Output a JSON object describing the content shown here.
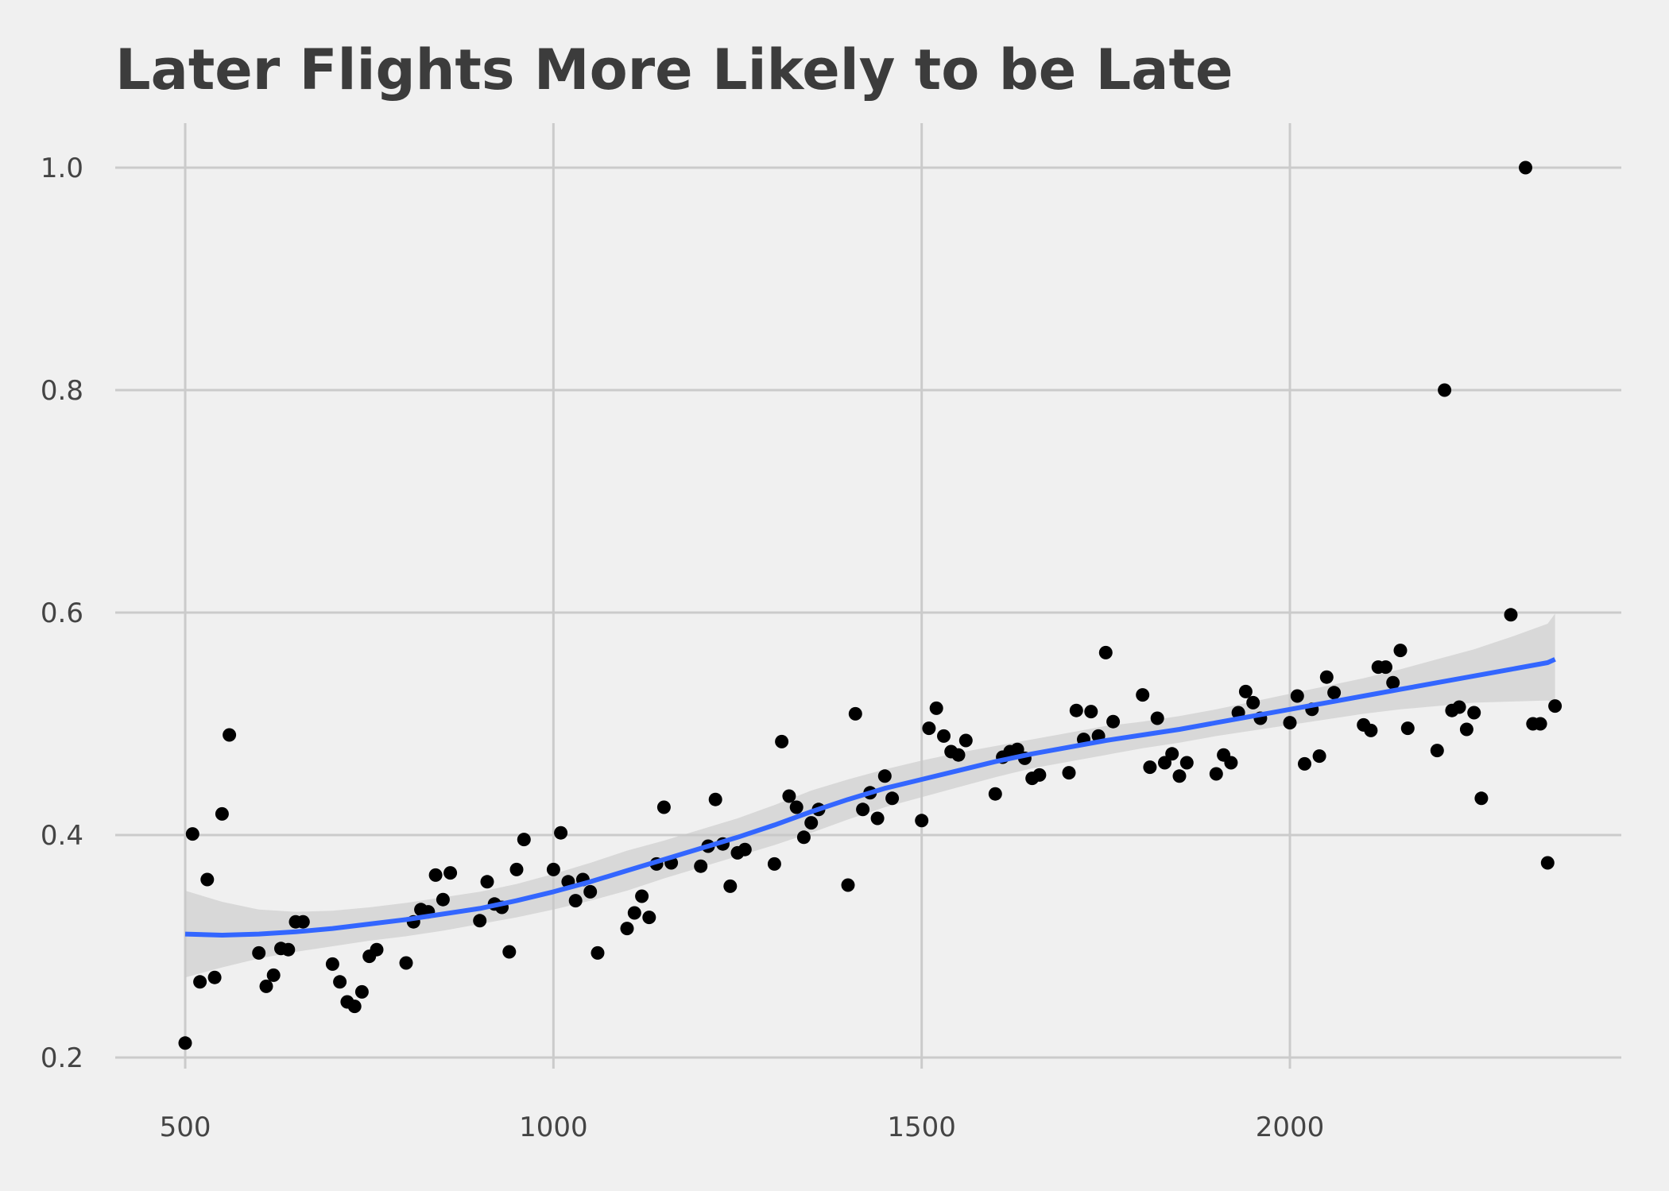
{
  "chart_data": {
    "type": "scatter",
    "title": "Later Flights More Likely to be Late",
    "xlabel": "",
    "ylabel": "",
    "xlim": [
      405,
      2450
    ],
    "ylim": [
      0.19,
      1.04
    ],
    "xticks": [
      500,
      1000,
      1500,
      2000
    ],
    "xtick_labels": [
      "500",
      "1000",
      "1500",
      "2000"
    ],
    "yticks": [
      0.2,
      0.4,
      0.6,
      0.8,
      1.0
    ],
    "ytick_labels": [
      "0.2",
      "0.4",
      "0.6",
      "0.8",
      "1.0"
    ],
    "grid": true,
    "colors": {
      "background": "#f0f0f0",
      "grid": "#cbcbcb",
      "points": "#000000",
      "smooth": "#3366ff",
      "band": "#c8c8c8",
      "text": "#3c3c3c"
    },
    "series": [
      {
        "kind": "points",
        "points": [
          [
            500,
            0.213
          ],
          [
            510,
            0.401
          ],
          [
            520,
            0.268
          ],
          [
            530,
            0.36
          ],
          [
            540,
            0.272
          ],
          [
            550,
            0.419
          ],
          [
            560,
            0.49
          ],
          [
            600,
            0.294
          ],
          [
            610,
            0.264
          ],
          [
            620,
            0.274
          ],
          [
            630,
            0.298
          ],
          [
            640,
            0.297
          ],
          [
            650,
            0.322
          ],
          [
            660,
            0.322
          ],
          [
            700,
            0.284
          ],
          [
            710,
            0.268
          ],
          [
            720,
            0.25
          ],
          [
            730,
            0.246
          ],
          [
            740,
            0.259
          ],
          [
            750,
            0.291
          ],
          [
            760,
            0.297
          ],
          [
            800,
            0.285
          ],
          [
            810,
            0.322
          ],
          [
            820,
            0.333
          ],
          [
            830,
            0.331
          ],
          [
            840,
            0.364
          ],
          [
            850,
            0.342
          ],
          [
            860,
            0.366
          ],
          [
            900,
            0.323
          ],
          [
            910,
            0.358
          ],
          [
            920,
            0.338
          ],
          [
            930,
            0.335
          ],
          [
            940,
            0.295
          ],
          [
            950,
            0.369
          ],
          [
            960,
            0.396
          ],
          [
            1000,
            0.369
          ],
          [
            1010,
            0.402
          ],
          [
            1020,
            0.358
          ],
          [
            1030,
            0.341
          ],
          [
            1040,
            0.36
          ],
          [
            1050,
            0.349
          ],
          [
            1060,
            0.294
          ],
          [
            1100,
            0.316
          ],
          [
            1110,
            0.33
          ],
          [
            1120,
            0.345
          ],
          [
            1130,
            0.326
          ],
          [
            1140,
            0.374
          ],
          [
            1150,
            0.425
          ],
          [
            1160,
            0.375
          ],
          [
            1200,
            0.372
          ],
          [
            1210,
            0.39
          ],
          [
            1220,
            0.432
          ],
          [
            1230,
            0.392
          ],
          [
            1240,
            0.354
          ],
          [
            1250,
            0.384
          ],
          [
            1260,
            0.387
          ],
          [
            1300,
            0.374
          ],
          [
            1310,
            0.484
          ],
          [
            1320,
            0.435
          ],
          [
            1330,
            0.425
          ],
          [
            1340,
            0.398
          ],
          [
            1350,
            0.411
          ],
          [
            1360,
            0.423
          ],
          [
            1400,
            0.355
          ],
          [
            1410,
            0.509
          ],
          [
            1420,
            0.423
          ],
          [
            1430,
            0.438
          ],
          [
            1440,
            0.415
          ],
          [
            1450,
            0.453
          ],
          [
            1460,
            0.433
          ],
          [
            1500,
            0.413
          ],
          [
            1510,
            0.496
          ],
          [
            1520,
            0.514
          ],
          [
            1530,
            0.489
          ],
          [
            1540,
            0.475
          ],
          [
            1550,
            0.472
          ],
          [
            1560,
            0.485
          ],
          [
            1600,
            0.437
          ],
          [
            1610,
            0.47
          ],
          [
            1620,
            0.475
          ],
          [
            1630,
            0.477
          ],
          [
            1640,
            0.469
          ],
          [
            1650,
            0.451
          ],
          [
            1660,
            0.454
          ],
          [
            1700,
            0.456
          ],
          [
            1710,
            0.512
          ],
          [
            1720,
            0.486
          ],
          [
            1730,
            0.511
          ],
          [
            1740,
            0.489
          ],
          [
            1750,
            0.564
          ],
          [
            1760,
            0.502
          ],
          [
            1800,
            0.526
          ],
          [
            1810,
            0.461
          ],
          [
            1820,
            0.505
          ],
          [
            1830,
            0.465
          ],
          [
            1840,
            0.473
          ],
          [
            1850,
            0.453
          ],
          [
            1860,
            0.465
          ],
          [
            1900,
            0.455
          ],
          [
            1910,
            0.472
          ],
          [
            1920,
            0.465
          ],
          [
            1930,
            0.51
          ],
          [
            1940,
            0.529
          ],
          [
            1950,
            0.519
          ],
          [
            1960,
            0.505
          ],
          [
            2000,
            0.501
          ],
          [
            2010,
            0.525
          ],
          [
            2020,
            0.464
          ],
          [
            2030,
            0.513
          ],
          [
            2040,
            0.471
          ],
          [
            2050,
            0.542
          ],
          [
            2060,
            0.528
          ],
          [
            2100,
            0.499
          ],
          [
            2110,
            0.494
          ],
          [
            2120,
            0.551
          ],
          [
            2130,
            0.551
          ],
          [
            2140,
            0.537
          ],
          [
            2150,
            0.566
          ],
          [
            2160,
            0.496
          ],
          [
            2200,
            0.476
          ],
          [
            2210,
            0.8
          ],
          [
            2220,
            0.512
          ],
          [
            2230,
            0.515
          ],
          [
            2240,
            0.495
          ],
          [
            2250,
            0.51
          ],
          [
            2260,
            0.433
          ],
          [
            2300,
            0.598
          ],
          [
            2320,
            1.0
          ],
          [
            2330,
            0.5
          ],
          [
            2340,
            0.5
          ],
          [
            2350,
            0.375
          ],
          [
            2360,
            0.516
          ]
        ]
      },
      {
        "kind": "smooth",
        "x": [
          500,
          550,
          600,
          650,
          700,
          750,
          800,
          850,
          900,
          950,
          1000,
          1050,
          1100,
          1150,
          1200,
          1250,
          1300,
          1350,
          1400,
          1450,
          1500,
          1550,
          1600,
          1650,
          1700,
          1750,
          1800,
          1850,
          1900,
          1950,
          2000,
          2050,
          2100,
          2150,
          2200,
          2250,
          2300,
          2350,
          2360
        ],
        "y": [
          0.311,
          0.31,
          0.311,
          0.313,
          0.316,
          0.32,
          0.324,
          0.329,
          0.334,
          0.341,
          0.349,
          0.358,
          0.368,
          0.378,
          0.388,
          0.398,
          0.409,
          0.421,
          0.432,
          0.442,
          0.45,
          0.458,
          0.466,
          0.473,
          0.479,
          0.485,
          0.49,
          0.495,
          0.501,
          0.507,
          0.513,
          0.519,
          0.525,
          0.531,
          0.537,
          0.543,
          0.549,
          0.555,
          0.558
        ],
        "lower": [
          0.272,
          0.281,
          0.289,
          0.295,
          0.3,
          0.305,
          0.309,
          0.314,
          0.32,
          0.326,
          0.333,
          0.341,
          0.35,
          0.361,
          0.371,
          0.381,
          0.391,
          0.402,
          0.414,
          0.425,
          0.434,
          0.443,
          0.452,
          0.46,
          0.466,
          0.472,
          0.478,
          0.483,
          0.489,
          0.494,
          0.499,
          0.504,
          0.509,
          0.513,
          0.516,
          0.519,
          0.52,
          0.521,
          0.519
        ],
        "upper": [
          0.35,
          0.34,
          0.333,
          0.331,
          0.332,
          0.335,
          0.339,
          0.344,
          0.349,
          0.356,
          0.365,
          0.375,
          0.386,
          0.395,
          0.405,
          0.415,
          0.427,
          0.44,
          0.45,
          0.459,
          0.467,
          0.474,
          0.48,
          0.486,
          0.492,
          0.498,
          0.502,
          0.507,
          0.513,
          0.52,
          0.527,
          0.534,
          0.541,
          0.549,
          0.558,
          0.567,
          0.578,
          0.59,
          0.599
        ]
      }
    ]
  }
}
